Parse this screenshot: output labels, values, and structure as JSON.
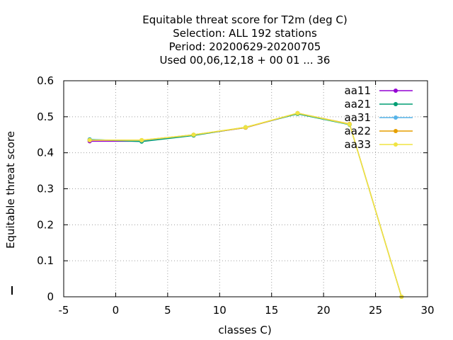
{
  "chart_data": {
    "type": "line",
    "title_lines": [
      "Equitable threat score  for T2m (deg C)",
      "Selection: ALL    192 stations",
      "Period: 20200629-20200705",
      "Used  00,06,12,18 + 00 01 ... 36"
    ],
    "xlabel": "classes C)",
    "ylabel": "Equitable threat score",
    "xlim": [
      -5,
      30
    ],
    "ylim": [
      0,
      0.6
    ],
    "xticks": [
      -5,
      0,
      5,
      10,
      15,
      20,
      25,
      30
    ],
    "yticks": [
      0,
      0.1,
      0.2,
      0.3,
      0.4,
      0.5,
      0.6
    ],
    "grid": true,
    "legend_position": "top-right",
    "series": [
      {
        "name": "aa11",
        "color": "#9400d3",
        "x": [
          -2.5,
          2.5,
          7.5,
          12.5,
          17.5,
          22.5
        ],
        "y": [
          0.432,
          0.432,
          0.449,
          0.47,
          0.509,
          0.479
        ]
      },
      {
        "name": "aa21",
        "color": "#009e73",
        "x": [
          -2.5,
          2.5,
          7.5,
          12.5,
          17.5,
          22.5
        ],
        "y": [
          0.437,
          0.431,
          0.448,
          0.471,
          0.508,
          0.478
        ]
      },
      {
        "name": "aa31",
        "color": "#56b4e9",
        "x": [
          -2.5,
          2.5,
          7.5,
          12.5,
          17.5,
          22.5,
          27.5
        ],
        "y": [
          0.436,
          0.434,
          0.45,
          0.47,
          0.51,
          0.479,
          0.0
        ]
      },
      {
        "name": "aa22",
        "color": "#e69f00",
        "x": [
          -2.5,
          2.5,
          7.5,
          12.5,
          17.5,
          22.5,
          27.5
        ],
        "y": [
          0.435,
          0.435,
          0.45,
          0.47,
          0.51,
          0.48,
          0.0
        ]
      },
      {
        "name": "aa33",
        "color": "#f0e442",
        "x": [
          -2.5,
          2.5,
          7.5,
          12.5,
          17.5,
          22.5,
          27.5
        ],
        "y": [
          0.435,
          0.435,
          0.45,
          0.471,
          0.51,
          0.479,
          0.0
        ]
      }
    ]
  }
}
